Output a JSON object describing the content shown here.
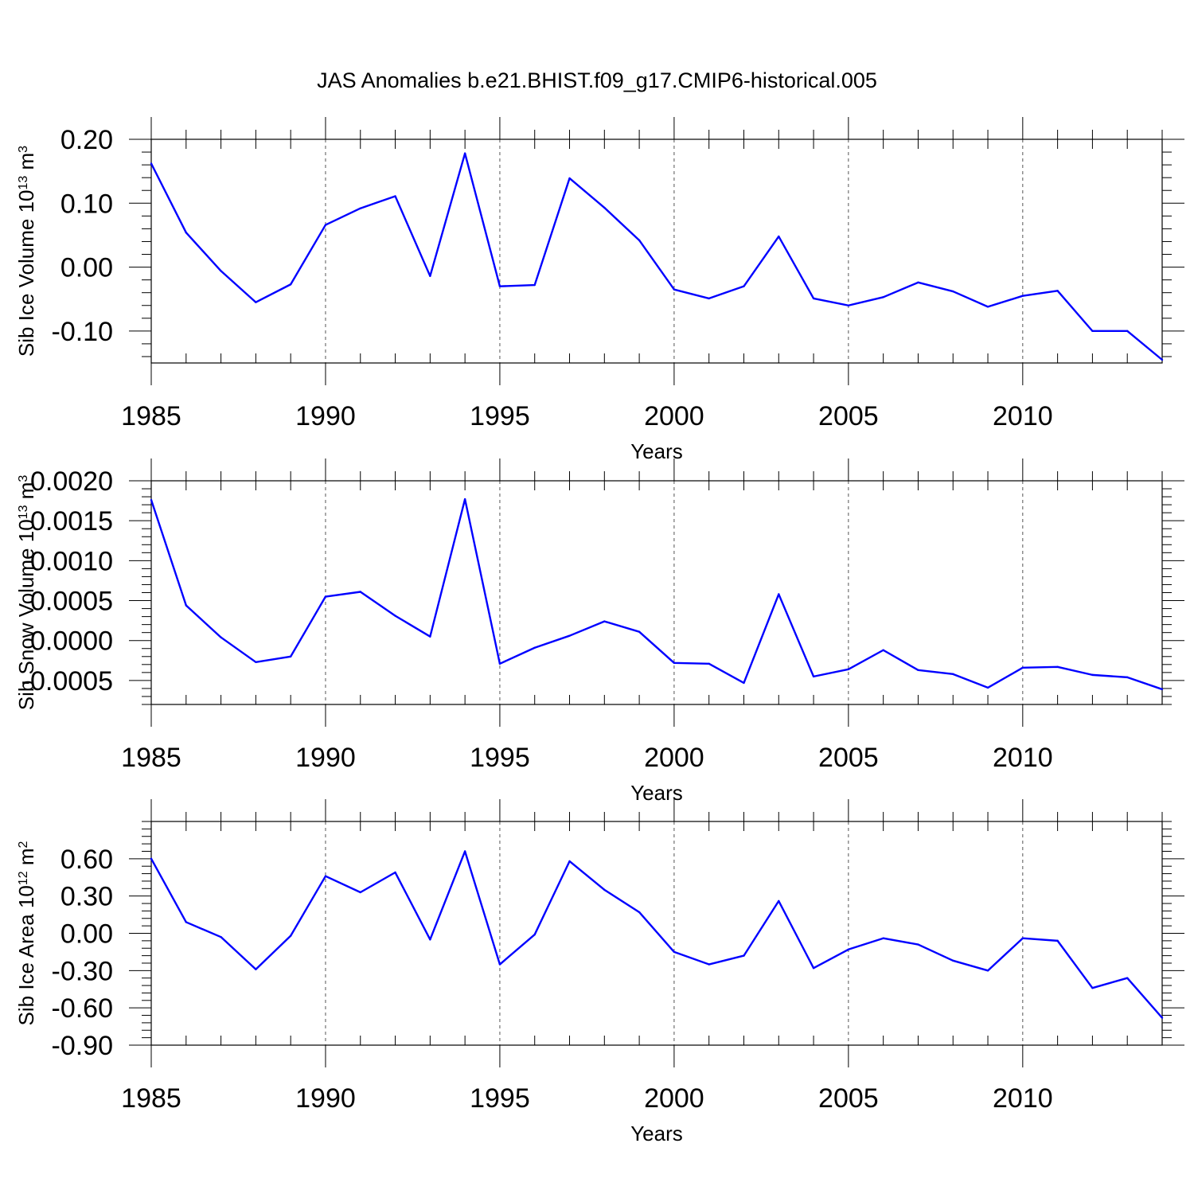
{
  "title": "JAS Anomalies b.e21.BHIST.f09_g17.CMIP6-historical.005",
  "line_color": "#0000ff",
  "chart_data": [
    {
      "type": "line",
      "xlabel": "Years",
      "ylabel": "Sib Ice Volume 10",
      "ylabel_exponent": "13",
      "ylabel_unit": "m",
      "ylabel_unit_exponent": "3",
      "xlim": [
        1985,
        2014
      ],
      "ylim": [
        -0.15,
        0.2
      ],
      "x_ticks": [
        "1985",
        "1990",
        "1995",
        "2000",
        "2005",
        "2010"
      ],
      "y_ticks": [
        "0.20",
        "0.10",
        "0.00",
        "-0.10"
      ],
      "y_tick_values": [
        0.2,
        0.1,
        0.0,
        -0.1
      ],
      "x": [
        1985,
        1986,
        1987,
        1988,
        1989,
        1990,
        1991,
        1992,
        1993,
        1994,
        1995,
        1996,
        1997,
        1998,
        1999,
        2000,
        2001,
        2002,
        2003,
        2004,
        2005,
        2006,
        2007,
        2008,
        2009,
        2010,
        2011,
        2012,
        2013,
        2014
      ],
      "series": [
        {
          "name": "Sib Ice Volume",
          "values": [
            0.162,
            0.054,
            -0.006,
            -0.055,
            -0.027,
            0.066,
            0.092,
            0.111,
            -0.014,
            0.178,
            -0.03,
            -0.028,
            0.139,
            0.093,
            0.042,
            -0.035,
            -0.049,
            -0.03,
            0.048,
            -0.049,
            -0.06,
            -0.047,
            -0.024,
            -0.038,
            -0.062,
            -0.045,
            -0.037,
            -0.1,
            -0.1,
            -0.145
          ]
        }
      ]
    },
    {
      "type": "line",
      "xlabel": "Years",
      "ylabel": "Sib Snow Volume 10",
      "ylabel_exponent": "13",
      "ylabel_unit": "m",
      "ylabel_unit_exponent": "3",
      "xlim": [
        1985,
        2014
      ],
      "ylim": [
        -0.0008,
        0.002
      ],
      "x_ticks": [
        "1985",
        "1990",
        "1995",
        "2000",
        "2005",
        "2010"
      ],
      "y_ticks": [
        "0.0020",
        "0.0015",
        "0.0010",
        "0.0005",
        "0.0000",
        "-0.0005"
      ],
      "y_tick_values": [
        0.002,
        0.0015,
        0.001,
        0.0005,
        0.0,
        -0.0005
      ],
      "x": [
        1985,
        1986,
        1987,
        1988,
        1989,
        1990,
        1991,
        1992,
        1993,
        1994,
        1995,
        1996,
        1997,
        1998,
        1999,
        2000,
        2001,
        2002,
        2003,
        2004,
        2005,
        2006,
        2007,
        2008,
        2009,
        2010,
        2011,
        2012,
        2013,
        2014
      ],
      "series": [
        {
          "name": "Sib Snow Volume",
          "values": [
            0.00176,
            0.00044,
            4e-05,
            -0.00027,
            -0.0002,
            0.00055,
            0.00061,
            0.00031,
            5e-05,
            0.00177,
            -0.00029,
            -9e-05,
            6e-05,
            0.00024,
            0.00011,
            -0.00028,
            -0.00029,
            -0.00053,
            0.00058,
            -0.00045,
            -0.00036,
            -0.00012,
            -0.00037,
            -0.00042,
            -0.00059,
            -0.00034,
            -0.00033,
            -0.00043,
            -0.00046,
            -0.00061
          ]
        }
      ]
    },
    {
      "type": "line",
      "xlabel": "Years",
      "ylabel": "Sib Ice Area 10",
      "ylabel_exponent": "12",
      "ylabel_unit": "m",
      "ylabel_unit_exponent": "2",
      "xlim": [
        1985,
        2014
      ],
      "ylim": [
        -0.9,
        0.9
      ],
      "x_ticks": [
        "1985",
        "1990",
        "1995",
        "2000",
        "2005",
        "2010"
      ],
      "y_ticks": [
        "0.60",
        "0.30",
        "0.00",
        "-0.30",
        "-0.60",
        "-0.90"
      ],
      "y_tick_values": [
        0.6,
        0.3,
        0.0,
        -0.3,
        -0.6,
        -0.9
      ],
      "x": [
        1985,
        1986,
        1987,
        1988,
        1989,
        1990,
        1991,
        1992,
        1993,
        1994,
        1995,
        1996,
        1997,
        1998,
        1999,
        2000,
        2001,
        2002,
        2003,
        2004,
        2005,
        2006,
        2007,
        2008,
        2009,
        2010,
        2011,
        2012,
        2013,
        2014
      ],
      "series": [
        {
          "name": "Sib Ice Area",
          "values": [
            0.6,
            0.09,
            -0.03,
            -0.29,
            -0.02,
            0.46,
            0.33,
            0.49,
            -0.05,
            0.66,
            -0.25,
            -0.01,
            0.58,
            0.35,
            0.17,
            -0.15,
            -0.25,
            -0.18,
            0.26,
            -0.28,
            -0.13,
            -0.04,
            -0.09,
            -0.22,
            -0.3,
            -0.04,
            -0.06,
            -0.44,
            -0.36,
            -0.68
          ]
        }
      ]
    }
  ]
}
